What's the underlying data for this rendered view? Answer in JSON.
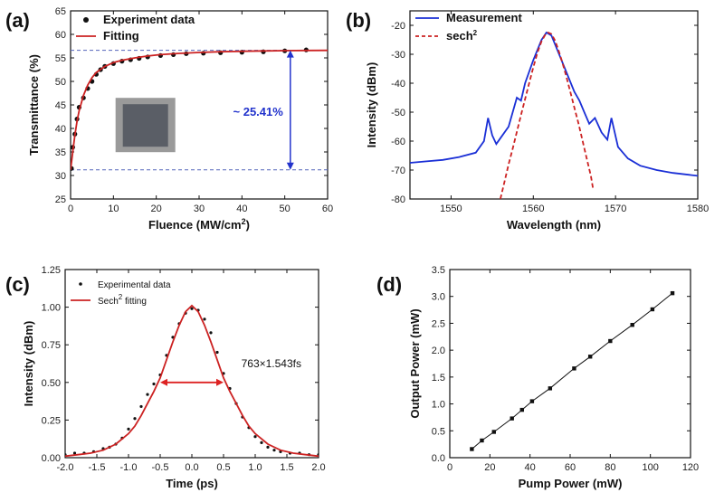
{
  "chart_data": [
    {
      "id": "a",
      "type": "scatter",
      "panel_label": "(a)",
      "xlabel": "Fluence (MW/cm",
      "xlabel_sup": "2",
      "xlabel_tail": ")",
      "ylabel": "Transmittance (%)",
      "xlim": [
        0,
        60
      ],
      "ylim": [
        25,
        65
      ],
      "xticks": [
        0,
        10,
        20,
        30,
        40,
        50,
        60
      ],
      "yticks": [
        25,
        30,
        35,
        40,
        45,
        50,
        55,
        60,
        65
      ],
      "legend": [
        {
          "label": "Experiment data",
          "kind": "dot",
          "color": "#111111"
        },
        {
          "label": "Fitting",
          "kind": "line",
          "color": "#cc2222"
        }
      ],
      "annotation": "~ 25.41%",
      "ref_lines": [
        31.2,
        56.6
      ],
      "series": [
        {
          "name": "Experiment data",
          "kind": "scatter",
          "color": "#111111",
          "x": [
            0.2,
            0.5,
            1,
            1.5,
            2,
            3,
            4,
            5,
            6,
            7,
            8,
            10,
            12,
            14,
            16,
            18,
            21,
            24,
            27,
            31,
            35,
            40,
            45,
            50,
            55
          ],
          "y": [
            31.5,
            36,
            38.8,
            42,
            44.5,
            46.5,
            48.5,
            50,
            51.5,
            52.5,
            53.2,
            53.8,
            54.3,
            54.6,
            54.9,
            55.2,
            55.5,
            55.7,
            55.9,
            56.0,
            56.1,
            56.2,
            56.3,
            56.5,
            56.7
          ]
        },
        {
          "name": "Fitting",
          "kind": "line",
          "color": "#cc2222",
          "x": [
            0,
            0.5,
            1,
            1.5,
            2,
            3,
            4,
            5,
            6,
            8,
            10,
            12,
            15,
            18,
            21,
            25,
            30,
            35,
            40,
            45,
            50,
            55,
            60
          ],
          "y": [
            31.2,
            35,
            38.5,
            41.5,
            43.8,
            47,
            49.2,
            50.8,
            51.9,
            53.2,
            54,
            54.5,
            55,
            55.4,
            55.7,
            55.95,
            56.15,
            56.3,
            56.4,
            56.48,
            56.53,
            56.57,
            56.6
          ]
        }
      ]
    },
    {
      "id": "b",
      "type": "line",
      "panel_label": "(b)",
      "xlabel": "Wavelength (nm)",
      "ylabel": "Intensity (dBm)",
      "xlim": [
        1545,
        1580
      ],
      "ylim": [
        -80,
        -15
      ],
      "xticks": [
        1550,
        1560,
        1570,
        1580
      ],
      "yticks": [
        -80,
        -70,
        -60,
        -50,
        -40,
        -30,
        -20
      ],
      "legend": [
        {
          "label": "Measurement",
          "kind": "line",
          "color": "#1a2fd6"
        },
        {
          "label": "sech",
          "sup": "2",
          "kind": "dash",
          "color": "#cc2222"
        }
      ],
      "series": [
        {
          "name": "Measurement",
          "kind": "line",
          "color": "#1a2fd6",
          "x": [
            1545,
            1547,
            1549,
            1551,
            1553,
            1554,
            1554.5,
            1555,
            1555.5,
            1556,
            1557,
            1558,
            1558.5,
            1559,
            1560,
            1561,
            1561.6,
            1562.2,
            1563,
            1564,
            1565,
            1565.6,
            1566.2,
            1566.8,
            1567.5,
            1568.3,
            1569,
            1569.5,
            1570.3,
            1571.5,
            1573,
            1575,
            1577,
            1580
          ],
          "y": [
            -67.5,
            -67,
            -66.5,
            -65.5,
            -64,
            -60,
            -52,
            -58,
            -61,
            -59,
            -55,
            -45,
            -46,
            -40,
            -32,
            -25,
            -22.5,
            -23.5,
            -29,
            -36,
            -43,
            -46,
            -50,
            -54,
            -52,
            -57,
            -59.5,
            -52,
            -62,
            -66,
            -68.5,
            -70,
            -71,
            -72
          ]
        },
        {
          "name": "sech2",
          "kind": "dash",
          "color": "#cc2222",
          "x": [
            1556,
            1556.5,
            1557,
            1557.5,
            1558,
            1558.5,
            1559,
            1559.5,
            1560,
            1560.5,
            1561,
            1561.5,
            1561.8,
            1562.2,
            1562.6,
            1563,
            1563.5,
            1564,
            1564.5,
            1565,
            1565.5,
            1566,
            1566.5,
            1567,
            1567.3
          ],
          "y": [
            -80,
            -74,
            -68,
            -62.5,
            -56.8,
            -51,
            -45.5,
            -40,
            -34.5,
            -29.5,
            -25.5,
            -23,
            -22.5,
            -23,
            -25,
            -28,
            -32.5,
            -37.5,
            -43,
            -48.5,
            -54,
            -60,
            -66,
            -72,
            -77
          ]
        }
      ]
    },
    {
      "id": "c",
      "type": "scatter",
      "panel_label": "(c)",
      "xlabel": "Time (ps)",
      "ylabel": "Intensity (dBm)",
      "xlim": [
        -2.0,
        2.0
      ],
      "ylim": [
        0.0,
        1.25
      ],
      "xticks": [
        "-2.0",
        "-1.5",
        "-1.0",
        "-0.5",
        "0.0",
        "0.5",
        "1.0",
        "1.5",
        "2.0"
      ],
      "yticks": [
        "0.00",
        "0.25",
        "0.50",
        "0.75",
        "1.00",
        "1.25"
      ],
      "legend": [
        {
          "label": "Experimental data",
          "kind": "dot",
          "color": "#111111"
        },
        {
          "label": "Sech",
          "sup": "2",
          "tail": " fitting",
          "kind": "line",
          "color": "#cc2222"
        }
      ],
      "annotation": "763×1.543fs",
      "arrow": {
        "x1": -0.5,
        "x2": 0.5,
        "y": 0.5
      },
      "series": [
        {
          "name": "Experimental data",
          "kind": "scatter",
          "color": "#111111",
          "x": [
            -2.0,
            -1.85,
            -1.7,
            -1.55,
            -1.4,
            -1.3,
            -1.2,
            -1.1,
            -1.0,
            -0.9,
            -0.8,
            -0.7,
            -0.6,
            -0.5,
            -0.4,
            -0.3,
            -0.2,
            -0.1,
            0.0,
            0.1,
            0.2,
            0.3,
            0.4,
            0.5,
            0.6,
            0.7,
            0.8,
            0.9,
            1.0,
            1.1,
            1.2,
            1.3,
            1.4,
            1.55,
            1.7,
            1.85,
            2.0
          ],
          "y": [
            0.02,
            0.03,
            0.03,
            0.04,
            0.06,
            0.07,
            0.09,
            0.13,
            0.19,
            0.26,
            0.34,
            0.42,
            0.49,
            0.55,
            0.68,
            0.8,
            0.89,
            0.96,
            0.99,
            0.98,
            0.92,
            0.83,
            0.7,
            0.56,
            0.46,
            0.36,
            0.27,
            0.2,
            0.14,
            0.1,
            0.07,
            0.05,
            0.04,
            0.03,
            0.03,
            0.02,
            0.02
          ]
        },
        {
          "name": "Sech2 fitting",
          "kind": "line",
          "color": "#cc2222",
          "x": [
            -2.0,
            -1.8,
            -1.6,
            -1.4,
            -1.2,
            -1.0,
            -0.9,
            -0.8,
            -0.7,
            -0.6,
            -0.5,
            -0.4,
            -0.3,
            -0.2,
            -0.1,
            0.0,
            0.1,
            0.2,
            0.3,
            0.4,
            0.5,
            0.6,
            0.7,
            0.8,
            0.9,
            1.0,
            1.2,
            1.4,
            1.6,
            1.8,
            2.0
          ],
          "y": [
            0.01,
            0.02,
            0.03,
            0.05,
            0.09,
            0.16,
            0.21,
            0.28,
            0.36,
            0.44,
            0.53,
            0.65,
            0.77,
            0.88,
            0.97,
            1.01,
            0.97,
            0.88,
            0.77,
            0.65,
            0.53,
            0.44,
            0.36,
            0.28,
            0.21,
            0.16,
            0.09,
            0.05,
            0.03,
            0.02,
            0.01
          ]
        }
      ]
    },
    {
      "id": "d",
      "type": "line",
      "panel_label": "(d)",
      "xlabel": "Pump Power (mW)",
      "ylabel": "Output Power (mW)",
      "xlim": [
        0,
        120
      ],
      "ylim": [
        0.0,
        3.5
      ],
      "xticks": [
        0,
        20,
        40,
        60,
        80,
        100,
        120
      ],
      "yticks": [
        "0.0",
        "0.5",
        "1.0",
        "1.5",
        "2.0",
        "2.5",
        "3.0",
        "3.5"
      ],
      "series": [
        {
          "name": "Output Power",
          "kind": "line-markers",
          "color": "#111111",
          "x": [
            11,
            16,
            22,
            31,
            36,
            41,
            50,
            62,
            70,
            80,
            91,
            101,
            111
          ],
          "y": [
            0.16,
            0.32,
            0.48,
            0.73,
            0.89,
            1.05,
            1.29,
            1.66,
            1.88,
            2.17,
            2.47,
            2.76,
            3.06
          ]
        }
      ]
    }
  ]
}
